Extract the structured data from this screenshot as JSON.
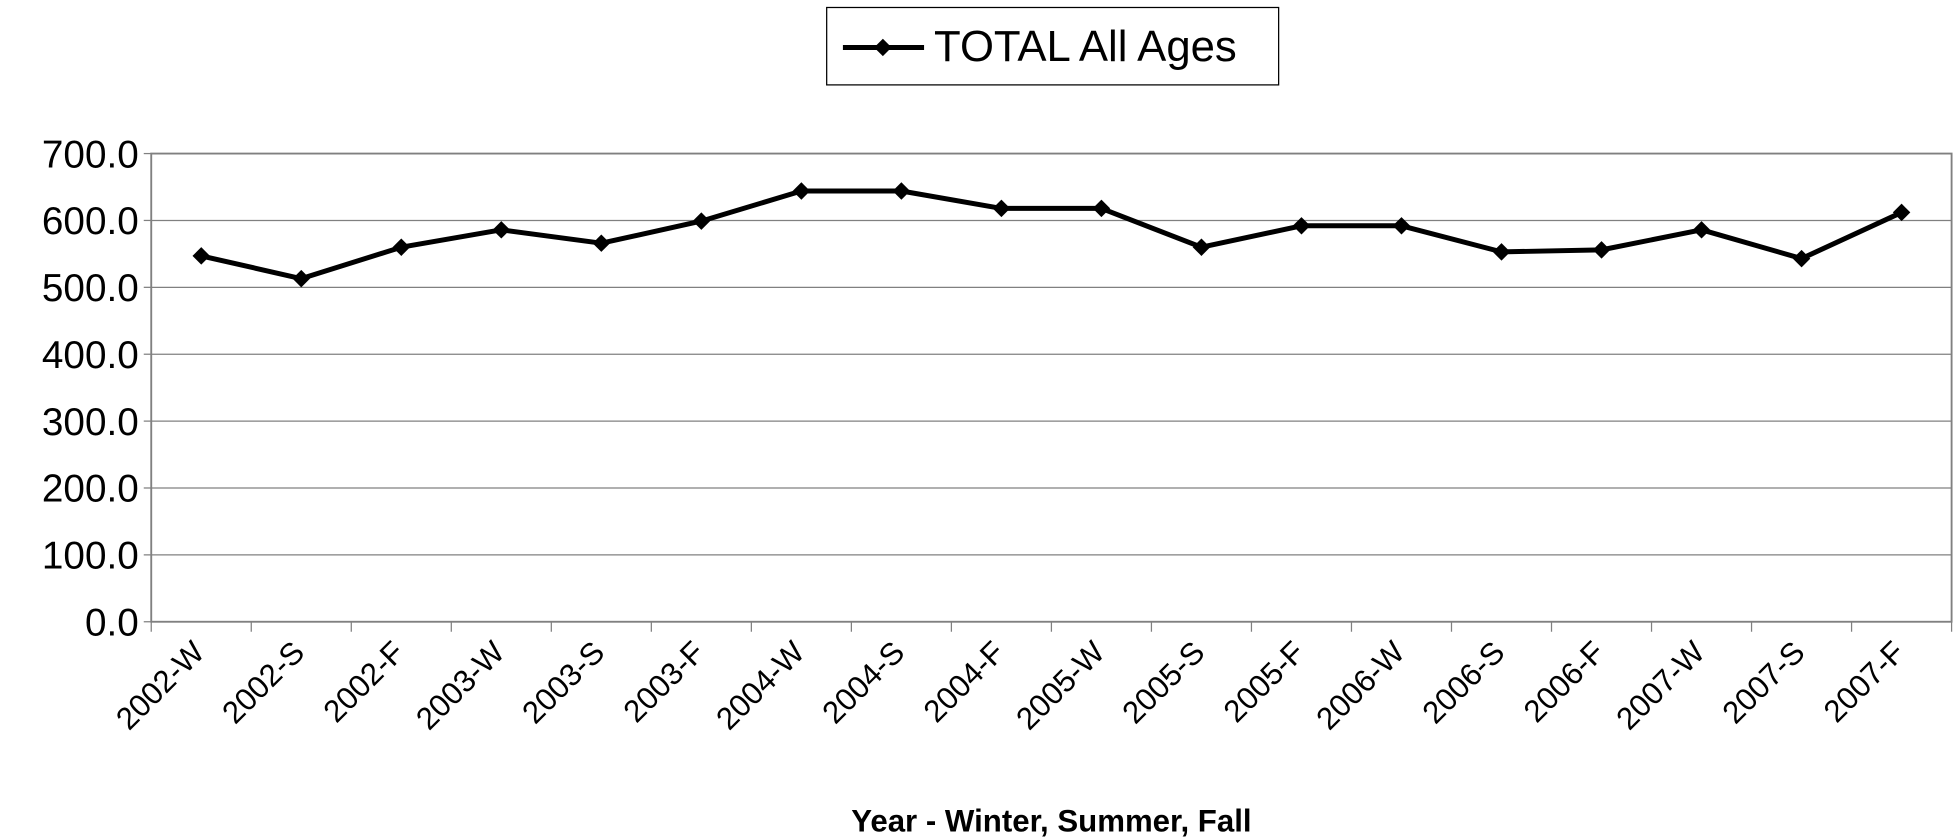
{
  "chart_data": {
    "type": "line",
    "x_label": "Year - Winter, Summer, Fall",
    "categories": [
      "2002-W",
      "2002-S",
      "2002-F",
      "2003-W",
      "2003-S",
      "2003-F",
      "2004-W",
      "2004-S",
      "2004-F",
      "2005-W",
      "2005-S",
      "2005-F",
      "2006-W",
      "2006-S",
      "2006-F",
      "2007-W",
      "2007-S",
      "2007-F"
    ],
    "series": [
      {
        "name": "TOTAL All Ages",
        "color": "#000000",
        "values": [
          547,
          513,
          560,
          586,
          566,
          599,
          644,
          644,
          618,
          618,
          560,
          592,
          592,
          553,
          556,
          586,
          543,
          612
        ]
      }
    ],
    "ylim": [
      0,
      700
    ],
    "yticks": [
      {
        "value": 0,
        "label": "0.0"
      },
      {
        "value": 100,
        "label": "100.0"
      },
      {
        "value": 200,
        "label": "200.0"
      },
      {
        "value": 300,
        "label": "300.0"
      },
      {
        "value": 400,
        "label": "400.0"
      },
      {
        "value": 500,
        "label": "500.0"
      },
      {
        "value": 600,
        "label": "600.0"
      },
      {
        "value": 700,
        "label": "700.0"
      }
    ],
    "grid": true,
    "legend": "top"
  }
}
